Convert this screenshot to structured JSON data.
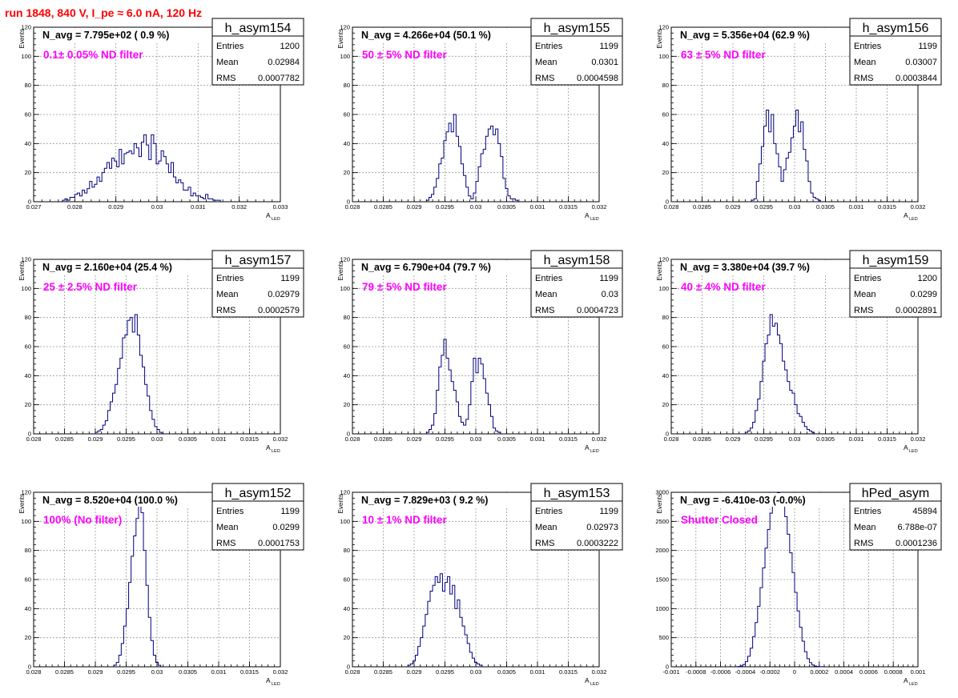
{
  "page_title": "run 1848,   840 V, I_pe ≈ 6.0 nA, 120 Hz",
  "colors": {
    "histogram_line": "#000080",
    "annotation": "#ff00ff",
    "page_title": "#ff0000",
    "grid": "#999999"
  },
  "stats_labels": {
    "entries": "Entries",
    "mean": "Mean",
    "rms": "RMS"
  },
  "chart_data": [
    {
      "type": "histogram",
      "name": "h_asym154",
      "navg": "N_avg = 7.795e+02 ( 0.9 %)",
      "annotation": "0.1± 0.05% ND filter",
      "stats": {
        "entries": "1200",
        "mean": "0.02984",
        "rms": "0.0007782"
      },
      "xlabel": "A",
      "xlabel_sub": "LED",
      "ylabel": "Events",
      "xlim": [
        0.027,
        0.033
      ],
      "ylim": [
        0,
        120
      ],
      "xticks": [
        0.027,
        0.028,
        0.029,
        0.03,
        0.031,
        0.032,
        0.033
      ],
      "xtick_labels": [
        "0.027",
        "0.028",
        "0.029",
        "0.03",
        "0.031",
        "0.032",
        "0.033"
      ],
      "yticks": [
        0,
        20,
        40,
        60,
        80,
        100,
        120
      ],
      "grid": true,
      "bin_start": 0.0277,
      "bin_width": 6e-05,
      "counts": [
        1,
        2,
        1,
        3,
        3,
        5,
        6,
        4,
        8,
        6,
        9,
        14,
        10,
        12,
        17,
        14,
        20,
        23,
        27,
        23,
        30,
        28,
        24,
        36,
        26,
        33,
        34,
        35,
        33,
        40,
        37,
        31,
        41,
        46,
        39,
        29,
        46,
        40,
        26,
        28,
        35,
        31,
        26,
        20,
        27,
        17,
        13,
        15,
        13,
        8,
        8,
        10,
        4,
        6,
        4,
        4,
        3,
        2,
        5,
        2,
        2,
        1,
        1,
        1
      ]
    },
    {
      "type": "histogram",
      "name": "h_asym155",
      "navg": "N_avg = 4.266e+04 (50.1 %)",
      "annotation": "50 ± 5% ND filter",
      "stats": {
        "entries": "1199",
        "mean": "0.0301",
        "rms": "0.0004598"
      },
      "xlabel": "A",
      "xlabel_sub": "LED",
      "ylabel": "Events",
      "xlim": [
        0.028,
        0.032
      ],
      "ylim": [
        0,
        120
      ],
      "xticks": [
        0.028,
        0.0285,
        0.029,
        0.0295,
        0.03,
        0.0305,
        0.031,
        0.0315,
        0.032
      ],
      "xtick_labels": [
        "0.028",
        "0.0285",
        "0.029",
        "0.0295",
        "0.03",
        "0.0305",
        "0.031",
        "0.0315",
        "0.032"
      ],
      "yticks": [
        0,
        20,
        40,
        60,
        80,
        100,
        120
      ],
      "grid": true,
      "bin_start": 0.0292,
      "bin_width": 4e-05,
      "counts": [
        1,
        3,
        5,
        10,
        16,
        26,
        30,
        42,
        48,
        54,
        48,
        60,
        45,
        38,
        26,
        18,
        10,
        4,
        2,
        6,
        14,
        24,
        33,
        36,
        45,
        50,
        52,
        46,
        50,
        40,
        31,
        16,
        9,
        4,
        2,
        2,
        1
      ]
    },
    {
      "type": "histogram",
      "name": "h_asym156",
      "navg": "N_avg = 5.356e+04 (62.9 %)",
      "annotation": "63 ± 5% ND filter",
      "stats": {
        "entries": "1199",
        "mean": "0.03007",
        "rms": "0.0003844"
      },
      "xlabel": "A",
      "xlabel_sub": "LED",
      "ylabel": "Events",
      "xlim": [
        0.028,
        0.032
      ],
      "ylim": [
        0,
        120
      ],
      "xticks": [
        0.028,
        0.0285,
        0.029,
        0.0295,
        0.03,
        0.0305,
        0.031,
        0.0315,
        0.032
      ],
      "xtick_labels": [
        "0.028",
        "0.0285",
        "0.029",
        "0.0295",
        "0.03",
        "0.0305",
        "0.031",
        "0.0315",
        "0.032"
      ],
      "yticks": [
        0,
        20,
        40,
        60,
        80,
        100,
        120
      ],
      "grid": true,
      "bin_start": 0.0293,
      "bin_width": 4e-05,
      "counts": [
        1,
        2,
        14,
        26,
        38,
        52,
        63,
        48,
        60,
        40,
        33,
        24,
        14,
        22,
        30,
        34,
        44,
        52,
        63,
        48,
        55,
        36,
        28,
        14,
        6,
        3,
        2,
        1
      ]
    },
    {
      "type": "histogram",
      "name": "h_asym157",
      "navg": "N_avg = 2.160e+04 (25.4 %)",
      "annotation": "25 ± 2.5% ND filter",
      "stats": {
        "entries": "1199",
        "mean": "0.02979",
        "rms": "0.0002579"
      },
      "xlabel": "A",
      "xlabel_sub": "LED",
      "ylabel": "Events",
      "xlim": [
        0.028,
        0.032
      ],
      "ylim": [
        0,
        120
      ],
      "xticks": [
        0.028,
        0.0285,
        0.029,
        0.0295,
        0.03,
        0.0305,
        0.031,
        0.0315,
        0.032
      ],
      "xtick_labels": [
        "0.028",
        "0.0285",
        "0.029",
        "0.0295",
        "0.03",
        "0.0305",
        "0.031",
        "0.0315",
        "0.032"
      ],
      "yticks": [
        0,
        20,
        40,
        60,
        80,
        100,
        120
      ],
      "grid": true,
      "bin_start": 0.029,
      "bin_width": 4e-05,
      "counts": [
        1,
        2,
        3,
        6,
        9,
        16,
        22,
        28,
        34,
        45,
        52,
        66,
        68,
        78,
        80,
        70,
        82,
        68,
        54,
        46,
        34,
        26,
        16,
        10,
        5,
        3,
        1
      ]
    },
    {
      "type": "histogram",
      "name": "h_asym158",
      "navg": "N_avg = 6.790e+04 (79.7 %)",
      "annotation": "79 ± 5% ND filter",
      "stats": {
        "entries": "1199",
        "mean": "0.03",
        "rms": "0.0004723"
      },
      "xlabel": "A",
      "xlabel_sub": "LED",
      "ylabel": "Events",
      "xlim": [
        0.028,
        0.032
      ],
      "ylim": [
        0,
        120
      ],
      "xticks": [
        0.028,
        0.0285,
        0.029,
        0.0295,
        0.03,
        0.0305,
        0.031,
        0.0315,
        0.032
      ],
      "xtick_labels": [
        "0.028",
        "0.0285",
        "0.029",
        "0.0295",
        "0.03",
        "0.0305",
        "0.031",
        "0.0315",
        "0.032"
      ],
      "yticks": [
        0,
        20,
        40,
        60,
        80,
        100,
        120
      ],
      "grid": true,
      "bin_start": 0.0292,
      "bin_width": 4e-05,
      "counts": [
        1,
        3,
        6,
        14,
        30,
        46,
        54,
        65,
        52,
        44,
        36,
        30,
        22,
        12,
        8,
        6,
        10,
        20,
        36,
        52,
        42,
        52,
        48,
        38,
        28,
        20,
        12,
        4,
        2,
        1
      ]
    },
    {
      "type": "histogram",
      "name": "h_asym159",
      "navg": "N_avg = 3.380e+04 (39.7 %)",
      "annotation": "40 ± 4% ND filter",
      "stats": {
        "entries": "1200",
        "mean": "0.0299",
        "rms": "0.0002891"
      },
      "xlabel": "A",
      "xlabel_sub": "LED",
      "ylabel": "Events",
      "xlim": [
        0.028,
        0.032
      ],
      "ylim": [
        0,
        120
      ],
      "xticks": [
        0.028,
        0.0285,
        0.029,
        0.0295,
        0.03,
        0.0305,
        0.031,
        0.0315,
        0.032
      ],
      "xtick_labels": [
        "0.028",
        "0.0285",
        "0.029",
        "0.0295",
        "0.03",
        "0.0305",
        "0.031",
        "0.0315",
        "0.032"
      ],
      "yticks": [
        0,
        20,
        40,
        60,
        80,
        100,
        120
      ],
      "grid": true,
      "bin_start": 0.0292,
      "bin_width": 4e-05,
      "counts": [
        1,
        2,
        4,
        8,
        16,
        24,
        36,
        50,
        62,
        68,
        82,
        74,
        76,
        68,
        62,
        50,
        44,
        36,
        30,
        28,
        20,
        14,
        12,
        8,
        5,
        3,
        2,
        1
      ]
    },
    {
      "type": "histogram",
      "name": "h_asym152",
      "navg": "N_avg = 8.520e+04 (100.0 %)",
      "annotation": "100% (No filter)",
      "stats": {
        "entries": "1199",
        "mean": "0.0299",
        "rms": "0.0001753"
      },
      "xlabel": "A",
      "xlabel_sub": "LED",
      "ylabel": "Events",
      "xlim": [
        0.028,
        0.032
      ],
      "ylim": [
        0,
        120
      ],
      "xticks": [
        0.028,
        0.0285,
        0.029,
        0.0295,
        0.03,
        0.0305,
        0.031,
        0.0315,
        0.032
      ],
      "xtick_labels": [
        "0.028",
        "0.0285",
        "0.029",
        "0.0295",
        "0.03",
        "0.0305",
        "0.031",
        "0.0315",
        "0.032"
      ],
      "yticks": [
        0,
        20,
        40,
        60,
        80,
        100,
        120
      ],
      "grid": true,
      "bin_start": 0.0293,
      "bin_width": 4e-05,
      "counts": [
        1,
        3,
        8,
        16,
        28,
        40,
        58,
        76,
        90,
        102,
        112,
        106,
        80,
        56,
        34,
        18,
        8,
        3,
        1
      ]
    },
    {
      "type": "histogram",
      "name": "h_asym153",
      "navg": "N_avg = 7.829e+03 ( 9.2 %)",
      "annotation": "10 ± 1% ND filter",
      "stats": {
        "entries": "1199",
        "mean": "0.02973",
        "rms": "0.0003222"
      },
      "xlabel": "A",
      "xlabel_sub": "LED",
      "ylabel": "Events",
      "xlim": [
        0.028,
        0.032
      ],
      "ylim": [
        0,
        120
      ],
      "xticks": [
        0.028,
        0.0285,
        0.029,
        0.0295,
        0.03,
        0.0305,
        0.031,
        0.0315,
        0.032
      ],
      "xtick_labels": [
        "0.028",
        "0.0285",
        "0.029",
        "0.0295",
        "0.03",
        "0.0305",
        "0.031",
        "0.0315",
        "0.032"
      ],
      "yticks": [
        0,
        20,
        40,
        60,
        80,
        100,
        120
      ],
      "grid": true,
      "bin_start": 0.0289,
      "bin_width": 4e-05,
      "counts": [
        1,
        2,
        4,
        8,
        14,
        20,
        28,
        36,
        45,
        52,
        56,
        62,
        58,
        64,
        52,
        58,
        62,
        50,
        56,
        40,
        46,
        34,
        28,
        22,
        16,
        10,
        6,
        3,
        2,
        1
      ]
    },
    {
      "type": "histogram",
      "name": "hPed_asym",
      "navg": "N_avg = -6.410e-03 (-0.0%)",
      "annotation": "Shutter Closed",
      "stats": {
        "entries": "45894",
        "mean": "6.788e-07",
        "rms": "0.0001236"
      },
      "xlabel": "A",
      "xlabel_sub": "LED",
      "ylabel": "Events",
      "xlim": [
        -0.001,
        0.001
      ],
      "ylim": [
        0,
        3000
      ],
      "xticks": [
        -0.001,
        -0.0008,
        -0.0006,
        -0.0004,
        -0.0002,
        0,
        0.0002,
        0.0004,
        0.0006,
        0.0008,
        0.001
      ],
      "xtick_labels": [
        "-0.001",
        "-0.0008",
        "-0.0006",
        "-0.0004",
        "-0.0002",
        "0",
        "0.0002",
        "0.0004",
        "0.0006",
        "0.0008",
        "0.001"
      ],
      "yticks": [
        0,
        500,
        1000,
        1500,
        2000,
        2500,
        3000
      ],
      "grid": true,
      "bin_start": -0.00048,
      "bin_width": 2e-05,
      "counts": [
        2,
        5,
        15,
        40,
        90,
        180,
        320,
        520,
        760,
        1040,
        1360,
        1700,
        2040,
        2360,
        2640,
        2860,
        2960,
        2990,
        2940,
        2820,
        2580,
        2280,
        1960,
        1620,
        1280,
        960,
        680,
        440,
        260,
        140,
        70,
        30,
        12,
        5,
        2,
        1
      ]
    }
  ]
}
